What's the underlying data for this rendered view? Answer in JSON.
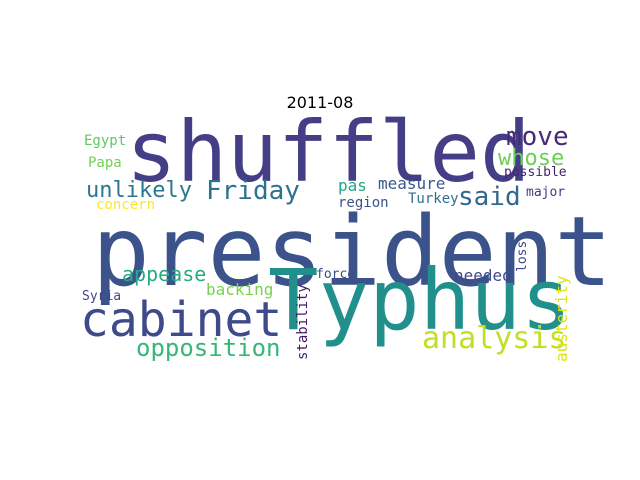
{
  "title": "2011-08",
  "words": [
    {
      "text": "president",
      "color": "#3b528b"
    },
    {
      "text": "shuffled",
      "color": "#433e85"
    },
    {
      "text": "Typhus",
      "color": "#21908d"
    },
    {
      "text": "cabinet",
      "color": "#3e4a89"
    },
    {
      "text": "analysis",
      "color": "#c2df23"
    },
    {
      "text": "opposition",
      "color": "#35b779"
    },
    {
      "text": "Friday",
      "color": "#2c728e"
    },
    {
      "text": "unlikely",
      "color": "#2a788e"
    },
    {
      "text": "move",
      "color": "#482878"
    },
    {
      "text": "whose",
      "color": "#6ece58"
    },
    {
      "text": "said",
      "color": "#31688e"
    },
    {
      "text": "appease",
      "color": "#25ab82"
    },
    {
      "text": "backing",
      "color": "#7ad151"
    },
    {
      "text": "needed",
      "color": "#3e4a89"
    },
    {
      "text": "austerity",
      "color": "#dde318"
    },
    {
      "text": "measure",
      "color": "#38598c"
    },
    {
      "text": "pas",
      "color": "#22a785"
    },
    {
      "text": "Egypt",
      "color": "#5ec962"
    },
    {
      "text": "Papa",
      "color": "#75d054"
    },
    {
      "text": "concern",
      "color": "#fde725"
    },
    {
      "text": "region",
      "color": "#3b528b"
    },
    {
      "text": "Turkey",
      "color": "#2d708e"
    },
    {
      "text": "possible",
      "color": "#481f70"
    },
    {
      "text": "major",
      "color": "#443983"
    },
    {
      "text": "loss",
      "color": "#404688"
    },
    {
      "text": "force",
      "color": "#3e4989"
    },
    {
      "text": "Syria",
      "color": "#3f4788"
    },
    {
      "text": "stability",
      "color": "#481769"
    }
  ]
}
